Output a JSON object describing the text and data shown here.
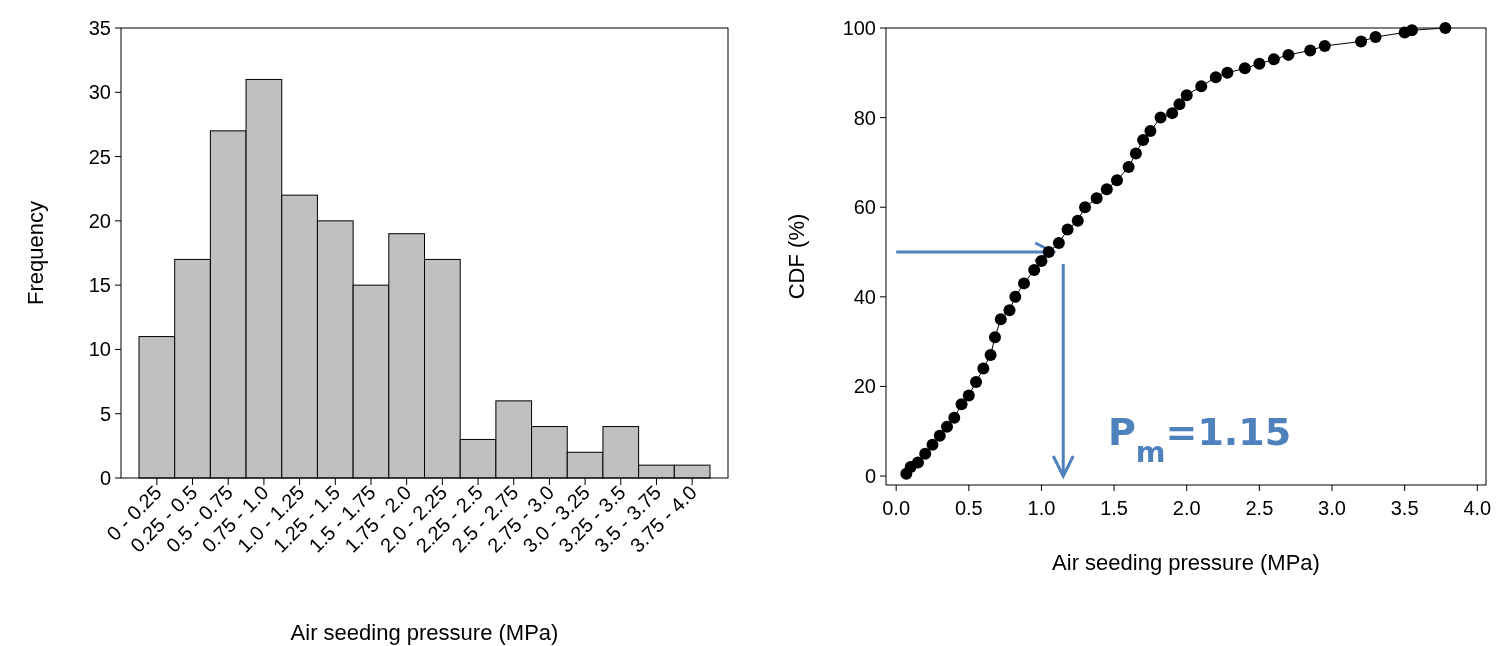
{
  "chart_data": [
    {
      "type": "bar",
      "categories": [
        "0 - 0.25",
        "0.25 - 0.5",
        "0.5 - 0.75",
        "0.75 - 1.0",
        "1.0 - 1.25",
        "1.25 - 1.5",
        "1.5 - 1.75",
        "1.75 - 2.0",
        "2.0 - 2.25",
        "2.25 - 2.5",
        "2.5 - 2.75",
        "2.75 - 3.0",
        "3.0 - 3.25",
        "3.25 - 3.5",
        "3.5 - 3.75",
        "3.75 - 4.0"
      ],
      "values": [
        11,
        17,
        27,
        31,
        22,
        20,
        15,
        19,
        17,
        3,
        6,
        4,
        2,
        4,
        1,
        1
      ],
      "color": "#c0c0c0",
      "xlabel": "Air seeding pressure (MPa)",
      "ylabel": "Frequency",
      "ylim": [
        0,
        35
      ],
      "yticks": [
        0,
        5,
        10,
        15,
        20,
        25,
        30,
        35
      ],
      "grid": false
    },
    {
      "type": "line",
      "marker": "circle",
      "line_style": "solid",
      "series": [
        {
          "color": "#000000",
          "x": [
            0.07,
            0.1,
            0.15,
            0.2,
            0.25,
            0.3,
            0.35,
            0.4,
            0.45,
            0.5,
            0.55,
            0.6,
            0.65,
            0.68,
            0.72,
            0.78,
            0.82,
            0.88,
            0.95,
            1.0,
            1.05,
            1.12,
            1.18,
            1.25,
            1.3,
            1.38,
            1.45,
            1.52,
            1.6,
            1.65,
            1.7,
            1.75,
            1.82,
            1.9,
            1.95,
            2.0,
            2.1,
            2.2,
            2.28,
            2.4,
            2.5,
            2.6,
            2.7,
            2.85,
            2.95,
            3.2,
            3.3,
            3.5,
            3.55,
            3.78
          ],
          "values": [
            0.5,
            2,
            3,
            5,
            7,
            9,
            11,
            13,
            16,
            18,
            21,
            24,
            27,
            31,
            35,
            37,
            40,
            43,
            46,
            48,
            50,
            52,
            55,
            57,
            60,
            62,
            64,
            66,
            69,
            72,
            75,
            77,
            80,
            81,
            83,
            85,
            87,
            89,
            90,
            91,
            92,
            93,
            94,
            95,
            96,
            97,
            98,
            99,
            99.5,
            100
          ]
        }
      ],
      "xlabel": "Air seeding pressure (MPa)",
      "ylabel": "CDF (%)",
      "xlim": [
        -0.07,
        4.06
      ],
      "ylim": [
        -2,
        100
      ],
      "xticks": [
        {
          "value": 0,
          "label": "0.0"
        },
        0.5,
        {
          "value": 1,
          "label": "1.0"
        },
        1.5,
        {
          "value": 2,
          "label": "2.0"
        },
        2.5,
        {
          "value": 3,
          "label": "3.0"
        },
        3.5,
        {
          "value": 4,
          "label": "4.0"
        }
      ],
      "yticks": [
        0,
        20,
        40,
        60,
        80,
        100
      ],
      "grid": false,
      "ref_lines": [
        {
          "axis": "y",
          "value": 50,
          "color": "#4f81bd"
        },
        {
          "axis": "x",
          "value": 1.15,
          "color": "#4f81bd"
        }
      ],
      "annotations": [
        "P$_{m}$=1.15"
      ]
    }
  ]
}
